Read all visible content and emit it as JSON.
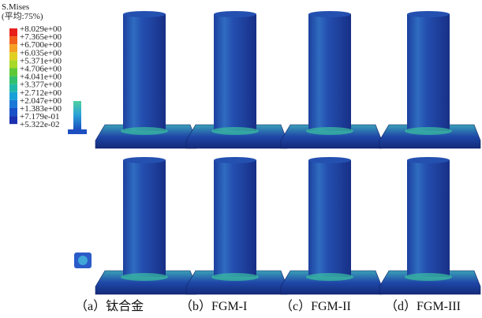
{
  "legend": {
    "title": "S.Mises",
    "subtitle": "(平均:75%)",
    "labels": [
      "+8.029e+00",
      "+7.365e+00",
      "+6.700e+00",
      "+6.035e+00",
      "+5.371e+00",
      "+4.706e+00",
      "+4.041e+00",
      "+3.377e+00",
      "+2.712e+00",
      "+2.047e+00",
      "+1.383e+00",
      "+7.179e-01",
      "+5.322e-02"
    ]
  },
  "captions": [
    "（a）钛合金",
    "（b）FGM-I",
    "（c）FGM-II",
    "（d）FGM-III"
  ]
}
